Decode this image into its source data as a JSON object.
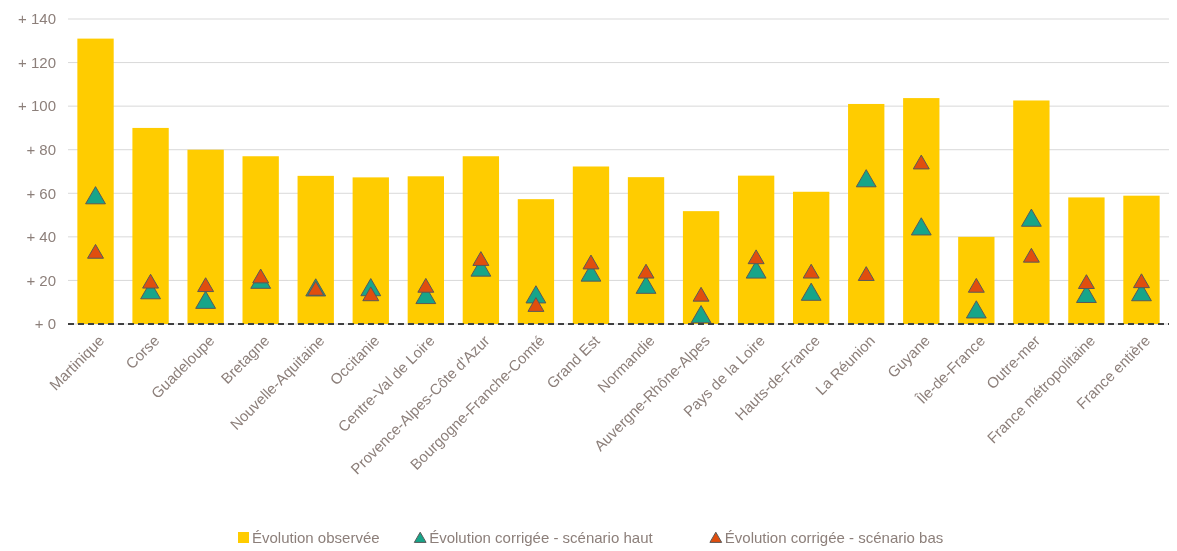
{
  "chart_data": {
    "type": "bar",
    "categories": [
      "Martinique",
      "Corse",
      "Guadeloupe",
      "Bretagne",
      "Nouvelle-Aquitaine",
      "Occitanie",
      "Centre-Val de Loire",
      "Provence-Alpes-Côte d'Azur",
      "Bourgogne-Franche-Comté",
      "Grand Est",
      "Normandie",
      "Auvergne-Rhône-Alpes",
      "Pays de la Loire",
      "Hauts-de-France",
      "La Réunion",
      "Guyane",
      "Île-de-France",
      "Outre-mer",
      "France métropolitaine",
      "France entière"
    ],
    "series": [
      {
        "name": "Évolution observée",
        "color": "#ffcc00",
        "values": [
          131,
          90,
          80,
          77,
          68,
          67.3,
          67.8,
          77,
          57.3,
          72.3,
          67.4,
          51.8,
          68.1,
          60.7,
          101,
          103.7,
          40,
          102.6,
          58.1,
          58.9
        ]
      },
      {
        "name": "Évolution corrigée - scénario haut",
        "type": "scatter",
        "color": "#17a589",
        "values": [
          57.8,
          14.2,
          9.8,
          19,
          15.5,
          15.6,
          12,
          24.6,
          12.3,
          22.3,
          16.7,
          3.2,
          23.7,
          13.5,
          65.6,
          43.5,
          5.4,
          47.5,
          12.5,
          13.3
        ]
      },
      {
        "name": "Évolution corrigée - scénario bas",
        "type": "scatter",
        "color": "#e04e0e",
        "values": [
          32.3,
          18.6,
          17,
          21,
          15.3,
          12.8,
          16.7,
          29,
          7.9,
          27.4,
          23.2,
          12.6,
          29.8,
          23.2,
          22.1,
          73.3,
          16.7,
          30.5,
          18.4,
          18.8
        ]
      }
    ],
    "ylim": [
      0,
      140
    ],
    "yticks": [
      {
        "value": 0,
        "label": "+ 0"
      },
      {
        "value": 20,
        "label": "+ 20"
      },
      {
        "value": 40,
        "label": "+ 40"
      },
      {
        "value": 60,
        "label": "+ 60"
      },
      {
        "value": 80,
        "label": "+ 80"
      },
      {
        "value": 100,
        "label": "+ 100"
      },
      {
        "value": 120,
        "label": "+ 120"
      },
      {
        "value": 140,
        "label": "+ 140"
      }
    ],
    "ref_lines": [
      {
        "axis": "y",
        "value": 0,
        "color": "#404040",
        "line_style": "dashed"
      }
    ],
    "grid": "y",
    "legend": "bottom",
    "marker": "triangle"
  }
}
